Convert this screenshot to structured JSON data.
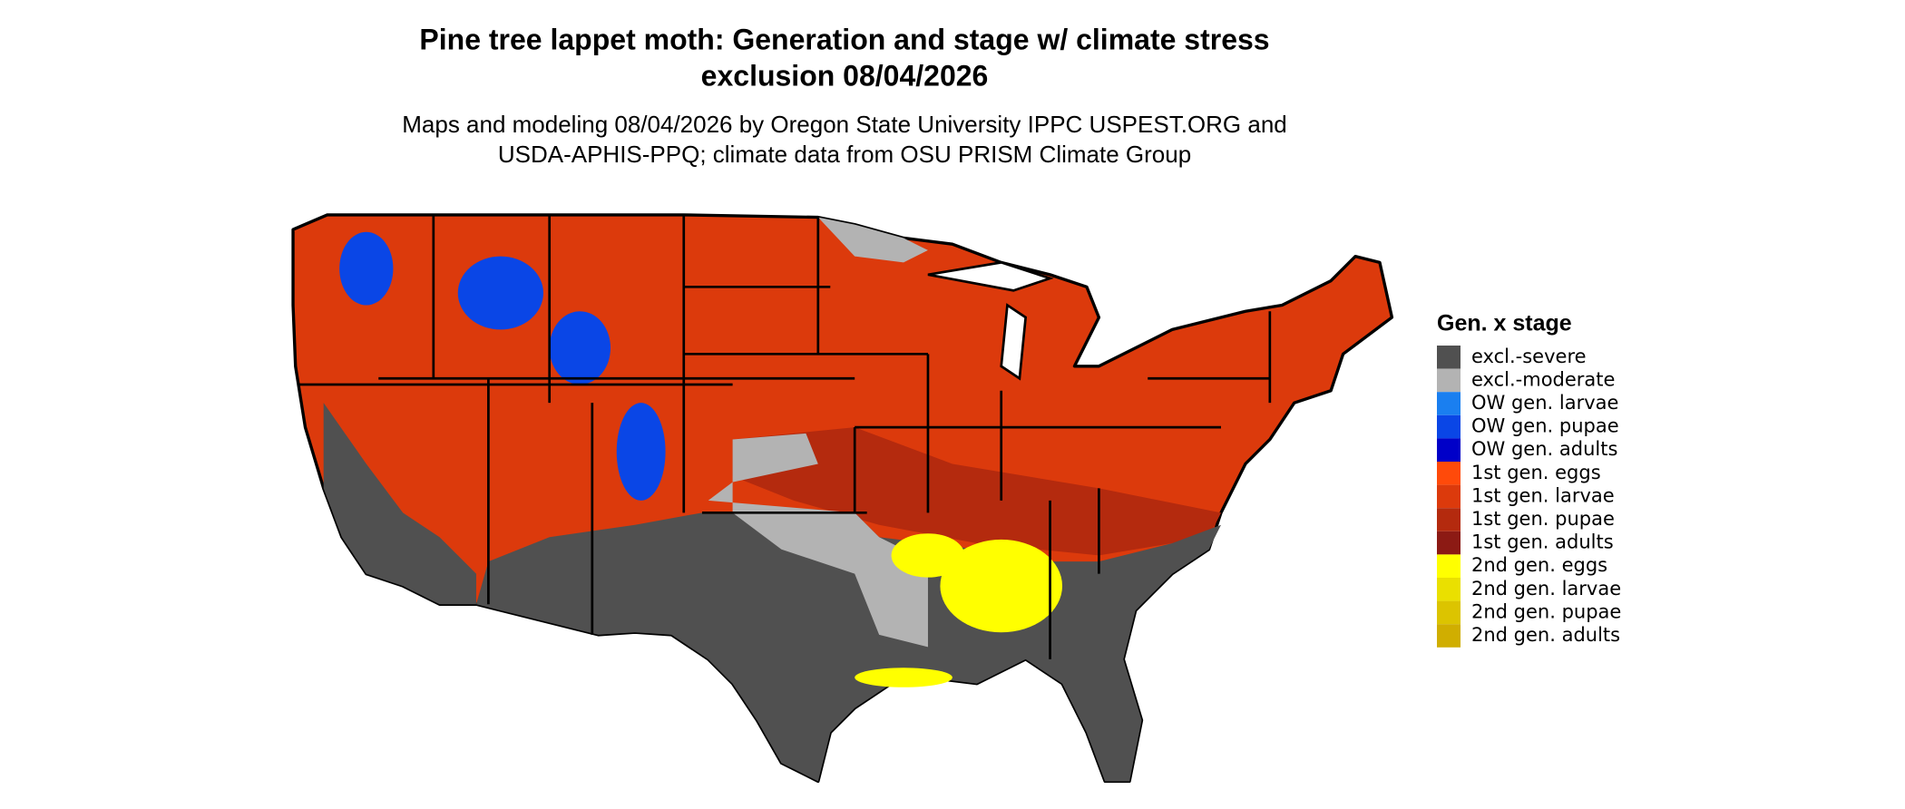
{
  "header": {
    "title_lines": [
      "Pine tree lappet moth: Generation and stage w/ climate stress",
      "exclusion 08/04/2026"
    ],
    "subtitle_lines": [
      "Maps and modeling 08/04/2026 by Oregon State University IPPC USPEST.ORG and",
      "USDA-APHIS-PPQ; climate data from OSU PRISM Climate Group"
    ]
  },
  "legend": {
    "title": "Gen. x stage",
    "items": [
      {
        "label": "excl.-severe",
        "color": "#505050"
      },
      {
        "label": "excl.-moderate",
        "color": "#b3b3b3"
      },
      {
        "label": "OW gen. larvae",
        "color": "#1a7ff0"
      },
      {
        "label": "OW gen. pupae",
        "color": "#0a46e6"
      },
      {
        "label": "OW gen. adults",
        "color": "#0000c8"
      },
      {
        "label": "1st gen. eggs",
        "color": "#ff4a0a"
      },
      {
        "label": "1st gen. larvae",
        "color": "#dc3a0c"
      },
      {
        "label": "1st gen. pupae",
        "color": "#b42a0e"
      },
      {
        "label": "1st gen. adults",
        "color": "#8c1a14"
      },
      {
        "label": "2nd gen. eggs",
        "color": "#ffff00"
      },
      {
        "label": "2nd gen. larvae",
        "color": "#eae000"
      },
      {
        "label": "2nd gen. pupae",
        "color": "#dcc400"
      },
      {
        "label": "2nd gen. adults",
        "color": "#d0ae00"
      }
    ]
  }
}
